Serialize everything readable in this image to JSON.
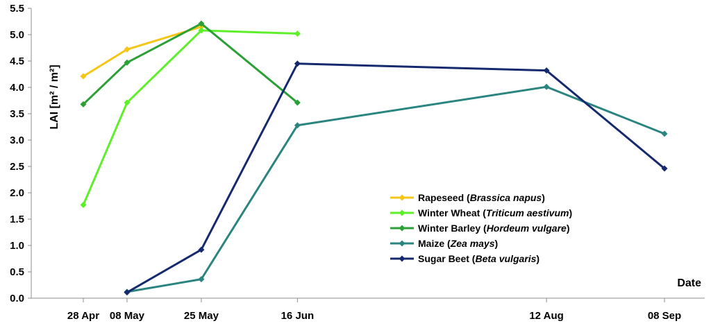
{
  "chart_data": {
    "type": "line",
    "title": "",
    "xlabel": "Date",
    "ylabel": "LAI [m² / m²]",
    "ylim": [
      0,
      5.5
    ],
    "yticks": [
      "0.0",
      "0.5",
      "1.0",
      "1.5",
      "2.0",
      "2.5",
      "3.0",
      "3.5",
      "4.0",
      "4.5",
      "5.0",
      "5.5"
    ],
    "x_categories": [
      "28 Apr",
      "08 May",
      "25 May",
      "16 Jun",
      "12 Aug",
      "08 Sep"
    ],
    "x_dates": [
      "04-28",
      "05-08",
      "05-25",
      "06-16",
      "08-12",
      "09-08"
    ],
    "legend_position": "bottom-right",
    "grid": false,
    "series": [
      {
        "name": "Rapeseed",
        "latin": "Brassica napus",
        "color": "#f5c518",
        "points": [
          [
            "28 Apr",
            4.21
          ],
          [
            "08 May",
            4.72
          ],
          [
            "25 May",
            5.15
          ]
        ]
      },
      {
        "name": "Winter Wheat",
        "latin": "Triticum aestivum",
        "color": "#5df02a",
        "points": [
          [
            "28 Apr",
            1.77
          ],
          [
            "08 May",
            3.71
          ],
          [
            "25 May",
            5.08
          ],
          [
            "16 Jun",
            5.02
          ]
        ]
      },
      {
        "name": "Winter Barley",
        "latin": "Hordeum vulgare",
        "color": "#2aa035",
        "points": [
          [
            "28 Apr",
            3.68
          ],
          [
            "08 May",
            4.47
          ],
          [
            "25 May",
            5.21
          ],
          [
            "16 Jun",
            3.71
          ]
        ]
      },
      {
        "name": "Maize",
        "latin": "Zea mays",
        "color": "#2a8480",
        "points": [
          [
            "08 May",
            0.12
          ],
          [
            "25 May",
            0.36
          ],
          [
            "16 Jun",
            3.28
          ],
          [
            "12 Aug",
            4.01
          ],
          [
            "08 Sep",
            3.12
          ]
        ]
      },
      {
        "name": "Sugar Beet",
        "latin": "Beta vulgaris",
        "color": "#152a6e",
        "points": [
          [
            "08 May",
            0.11
          ],
          [
            "25 May",
            0.92
          ],
          [
            "16 Jun",
            4.45
          ],
          [
            "12 Aug",
            4.32
          ],
          [
            "08 Sep",
            2.46
          ]
        ]
      }
    ]
  }
}
